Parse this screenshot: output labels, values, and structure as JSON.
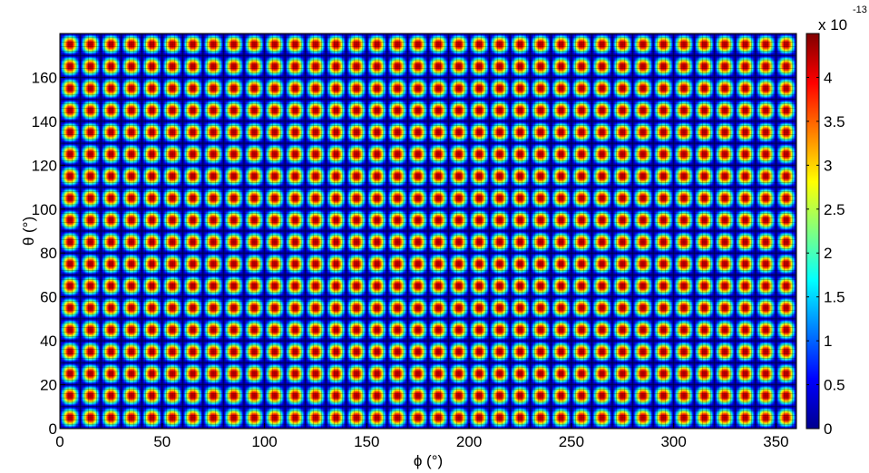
{
  "chart_data": {
    "type": "heatmap",
    "title": "",
    "xlabel": "ϕ (°)",
    "ylabel": "θ (°)",
    "xlim": [
      0,
      360
    ],
    "ylim": [
      0,
      180
    ],
    "x_ticks": [
      0,
      50,
      100,
      150,
      200,
      250,
      300,
      350
    ],
    "y_ticks": [
      0,
      20,
      40,
      60,
      80,
      100,
      120,
      140,
      160
    ],
    "x_period_deg": 10,
    "y_period_deg": 10,
    "gridlines": true,
    "colormap": "jet",
    "colorbar": {
      "clim": [
        0,
        4.5
      ],
      "ticks": [
        0,
        0.5,
        1,
        1.5,
        2,
        2.5,
        3,
        3.5,
        4
      ],
      "tick_labels": [
        "0",
        "0.5",
        "1",
        "1.5",
        "2",
        "2.5",
        "3",
        "3.5",
        "4"
      ],
      "multiplier_base": "x 10",
      "multiplier_exponent": "-13",
      "location": "right"
    }
  }
}
